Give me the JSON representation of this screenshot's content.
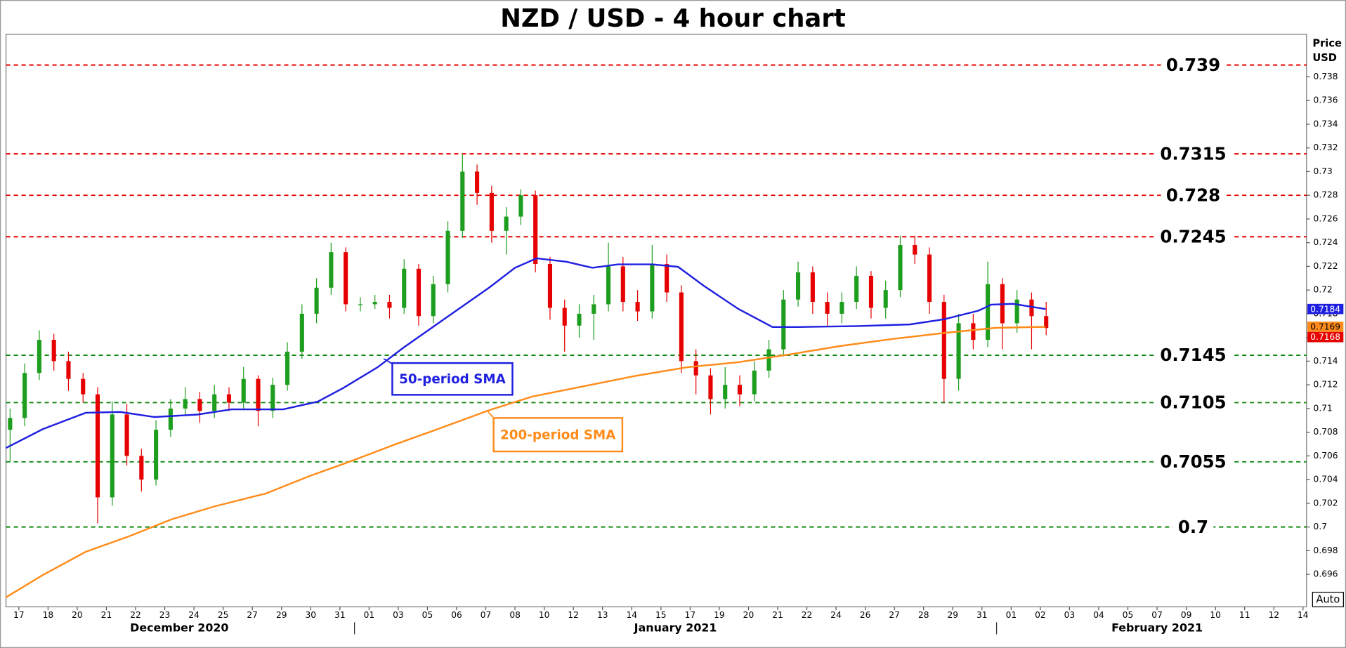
{
  "chart_data": {
    "type": "candlestick",
    "title": "NZD / USD - 4 hour chart",
    "ylabel": [
      "Price",
      "USD"
    ],
    "xlim": [
      -0.44,
      44.12
    ],
    "xticks": [
      {
        "value": 0,
        "label": "17"
      },
      {
        "value": 1,
        "label": "18"
      },
      {
        "value": 2,
        "label": "20"
      },
      {
        "value": 3,
        "label": "21"
      },
      {
        "value": 4,
        "label": "22"
      },
      {
        "value": 5,
        "label": "23"
      },
      {
        "value": 6,
        "label": "24"
      },
      {
        "value": 7,
        "label": "25"
      },
      {
        "value": 8,
        "label": "27"
      },
      {
        "value": 9,
        "label": "29"
      },
      {
        "value": 10,
        "label": "30"
      },
      {
        "value": 11,
        "label": "31"
      },
      {
        "value": 12,
        "label": "01"
      },
      {
        "value": 13,
        "label": "03"
      },
      {
        "value": 14,
        "label": "05"
      },
      {
        "value": 15,
        "label": "06"
      },
      {
        "value": 16,
        "label": "07"
      },
      {
        "value": 17,
        "label": "08"
      },
      {
        "value": 18,
        "label": "10"
      },
      {
        "value": 19,
        "label": "12"
      },
      {
        "value": 20,
        "label": "13"
      },
      {
        "value": 21,
        "label": "14"
      },
      {
        "value": 22,
        "label": "15"
      },
      {
        "value": 23,
        "label": "17"
      },
      {
        "value": 24,
        "label": "19"
      },
      {
        "value": 25,
        "label": "20"
      },
      {
        "value": 26,
        "label": "21"
      },
      {
        "value": 27,
        "label": "22"
      },
      {
        "value": 28,
        "label": "24"
      },
      {
        "value": 29,
        "label": "26"
      },
      {
        "value": 30,
        "label": "27"
      },
      {
        "value": 31,
        "label": "28"
      },
      {
        "value": 32,
        "label": "29"
      },
      {
        "value": 33,
        "label": "31"
      },
      {
        "value": 34,
        "label": "01"
      },
      {
        "value": 35,
        "label": "02"
      },
      {
        "value": 36,
        "label": "03"
      },
      {
        "value": 37,
        "label": "04"
      },
      {
        "value": 38,
        "label": "05"
      },
      {
        "value": 39,
        "label": "07"
      },
      {
        "value": 40,
        "label": "09"
      },
      {
        "value": 41,
        "label": "10"
      },
      {
        "value": 42,
        "label": "11"
      },
      {
        "value": 43,
        "label": "12"
      },
      {
        "value": 44,
        "label": "14"
      }
    ],
    "x_groups": [
      "December 2020",
      "January 2021",
      "February 2021"
    ],
    "ylim": [
      0.69326,
      0.74159
    ],
    "yticks": [
      0.696,
      0.698,
      0.7,
      0.702,
      0.704,
      0.706,
      0.708,
      0.71,
      0.712,
      0.714,
      0.716,
      0.718,
      0.72,
      0.722,
      0.724,
      0.726,
      0.728,
      0.73,
      0.732,
      0.734,
      0.736,
      0.738
    ],
    "candles": {
      "up_color": "#1e9e1e",
      "down_color": "#e60000",
      "x": [
        -0.3,
        0.2,
        0.7,
        1.2,
        1.7,
        2.2,
        2.7,
        3.2,
        3.7,
        4.2,
        4.7,
        5.2,
        5.7,
        6.2,
        6.7,
        7.2,
        7.7,
        8.2,
        8.7,
        9.2,
        9.7,
        10.2,
        10.7,
        11.2,
        11.7,
        12.2,
        12.7,
        13.2,
        13.7,
        14.2,
        14.7,
        15.2,
        15.7,
        16.2,
        16.7,
        17.2,
        17.7,
        18.2,
        18.7,
        19.2,
        19.7,
        20.2,
        20.7,
        21.2,
        21.7,
        22.2,
        22.7,
        23.2,
        23.7,
        24.2,
        24.7,
        25.2,
        25.7,
        26.2,
        26.7,
        27.2,
        27.7,
        28.2,
        28.7,
        29.2,
        29.7,
        30.2,
        30.7,
        31.2,
        31.7,
        32.2,
        32.7,
        33.2,
        33.7,
        34.2,
        34.7,
        35.2
      ],
      "open": [
        0.7082,
        0.7092,
        0.713,
        0.7158,
        0.714,
        0.7125,
        0.7112,
        0.7025,
        0.7095,
        0.706,
        0.704,
        0.7082,
        0.71,
        0.7108,
        0.7098,
        0.7112,
        0.7105,
        0.7125,
        0.7098,
        0.712,
        0.7148,
        0.718,
        0.7202,
        0.7232,
        0.7188,
        0.7188,
        0.719,
        0.7185,
        0.7218,
        0.7178,
        0.7205,
        0.725,
        0.73,
        0.7282,
        0.725,
        0.7262,
        0.728,
        0.7222,
        0.7185,
        0.717,
        0.718,
        0.7188,
        0.722,
        0.719,
        0.7182,
        0.7222,
        0.7198,
        0.714,
        0.7128,
        0.7108,
        0.712,
        0.7112,
        0.7132,
        0.715,
        0.7192,
        0.7215,
        0.719,
        0.718,
        0.719,
        0.7212,
        0.7185,
        0.72,
        0.7238,
        0.723,
        0.719,
        0.7125,
        0.7172,
        0.7158,
        0.7205,
        0.7172,
        0.7192,
        0.7178
      ],
      "high": [
        0.71,
        0.7138,
        0.7166,
        0.7163,
        0.7148,
        0.713,
        0.7118,
        0.7106,
        0.7104,
        0.7066,
        0.709,
        0.7108,
        0.7118,
        0.7114,
        0.712,
        0.7118,
        0.7135,
        0.7128,
        0.7126,
        0.7156,
        0.7188,
        0.721,
        0.724,
        0.7236,
        0.7194,
        0.7196,
        0.7196,
        0.7226,
        0.7222,
        0.7212,
        0.7258,
        0.7315,
        0.7306,
        0.7288,
        0.727,
        0.7285,
        0.7284,
        0.7228,
        0.7192,
        0.7188,
        0.7196,
        0.724,
        0.7228,
        0.72,
        0.7238,
        0.723,
        0.7204,
        0.715,
        0.7134,
        0.7135,
        0.7128,
        0.714,
        0.7158,
        0.72,
        0.7224,
        0.722,
        0.7198,
        0.7198,
        0.722,
        0.7216,
        0.7208,
        0.7246,
        0.7246,
        0.7236,
        0.7196,
        0.718,
        0.718,
        0.7224,
        0.721,
        0.72,
        0.7198,
        0.719
      ],
      "low": [
        0.7055,
        0.7085,
        0.7124,
        0.7132,
        0.7115,
        0.7105,
        0.7003,
        0.7018,
        0.7052,
        0.703,
        0.7035,
        0.7076,
        0.7094,
        0.7088,
        0.7092,
        0.7098,
        0.71,
        0.7085,
        0.7092,
        0.7115,
        0.7142,
        0.7172,
        0.7196,
        0.7182,
        0.7182,
        0.7184,
        0.7176,
        0.718,
        0.717,
        0.7172,
        0.7198,
        0.7244,
        0.7272,
        0.724,
        0.723,
        0.7255,
        0.7215,
        0.7175,
        0.7148,
        0.716,
        0.7158,
        0.7182,
        0.7182,
        0.7174,
        0.7176,
        0.719,
        0.713,
        0.7112,
        0.7095,
        0.71,
        0.7102,
        0.7106,
        0.7126,
        0.7144,
        0.7186,
        0.718,
        0.717,
        0.7172,
        0.7184,
        0.7176,
        0.7176,
        0.7194,
        0.7222,
        0.718,
        0.7105,
        0.7115,
        0.715,
        0.7152,
        0.715,
        0.7164,
        0.715,
        0.7162
      ],
      "close": [
        0.7092,
        0.713,
        0.7158,
        0.714,
        0.7125,
        0.7112,
        0.7025,
        0.7095,
        0.706,
        0.704,
        0.7082,
        0.71,
        0.7108,
        0.7098,
        0.7112,
        0.7105,
        0.7125,
        0.7098,
        0.712,
        0.7148,
        0.718,
        0.7202,
        0.7232,
        0.7188,
        0.7188,
        0.719,
        0.7185,
        0.7218,
        0.7178,
        0.7205,
        0.725,
        0.73,
        0.7282,
        0.725,
        0.7262,
        0.728,
        0.7222,
        0.7185,
        0.717,
        0.718,
        0.7188,
        0.722,
        0.719,
        0.7182,
        0.7222,
        0.7198,
        0.714,
        0.7128,
        0.7108,
        0.712,
        0.7112,
        0.7132,
        0.715,
        0.7192,
        0.7215,
        0.719,
        0.718,
        0.719,
        0.7212,
        0.7185,
        0.72,
        0.7238,
        0.723,
        0.719,
        0.7125,
        0.7172,
        0.7158,
        0.7205,
        0.7172,
        0.7192,
        0.7178,
        0.7168
      ]
    },
    "series": [
      {
        "name": "50-period SMA",
        "color": "#1f1fe0",
        "x": [
          -0.44,
          0.82,
          2.29,
          3.47,
          4.65,
          6.12,
          7.29,
          9.06,
          10.24,
          11.12,
          12.29,
          13.18,
          14.65,
          16.12,
          17.0,
          17.74,
          18.76,
          19.65,
          20.53,
          21.71,
          22.59,
          23.47,
          24.65,
          25.82,
          26.71,
          28.76,
          30.53,
          31.71,
          32.88,
          33.32,
          34.06,
          35.18
        ],
        "values": [
          0.70667,
          0.70826,
          0.70964,
          0.70971,
          0.70928,
          0.70949,
          0.70993,
          0.70993,
          0.71058,
          0.71174,
          0.71348,
          0.71514,
          0.71768,
          0.72022,
          0.72188,
          0.72268,
          0.72239,
          0.72188,
          0.72217,
          0.72217,
          0.72196,
          0.72036,
          0.71841,
          0.71688,
          0.71688,
          0.71696,
          0.7171,
          0.71754,
          0.71826,
          0.71877,
          0.71884,
          0.7184
        ]
      },
      {
        "name": "200-period SMA",
        "color": "#ff8c1a",
        "x": [
          -0.44,
          0.82,
          2.29,
          3.76,
          5.24,
          6.71,
          8.47,
          9.94,
          11.41,
          12.88,
          14.35,
          16.12,
          17.59,
          19.35,
          21.12,
          22.88,
          24.65,
          26.41,
          28.18,
          29.94,
          31.71,
          33.47,
          35.18
        ],
        "values": [
          0.69406,
          0.69594,
          0.6979,
          0.6992,
          0.70065,
          0.70174,
          0.70283,
          0.70428,
          0.70558,
          0.70696,
          0.70826,
          0.70986,
          0.71101,
          0.71188,
          0.71275,
          0.71348,
          0.71391,
          0.71457,
          0.71529,
          0.71587,
          0.71638,
          0.71681,
          0.7169
        ]
      }
    ],
    "levels": [
      {
        "value": 0.739,
        "color": "#e60000"
      },
      {
        "value": 0.7315,
        "color": "#e60000"
      },
      {
        "value": 0.728,
        "color": "#e60000"
      },
      {
        "value": 0.7245,
        "color": "#e60000"
      },
      {
        "value": 0.7145,
        "color": "#138a13"
      },
      {
        "value": 0.7105,
        "color": "#138a13"
      },
      {
        "value": 0.7055,
        "color": "#138a13"
      },
      {
        "value": 0.7,
        "color": "#138a13"
      }
    ],
    "scale_mode": "Auto"
  }
}
